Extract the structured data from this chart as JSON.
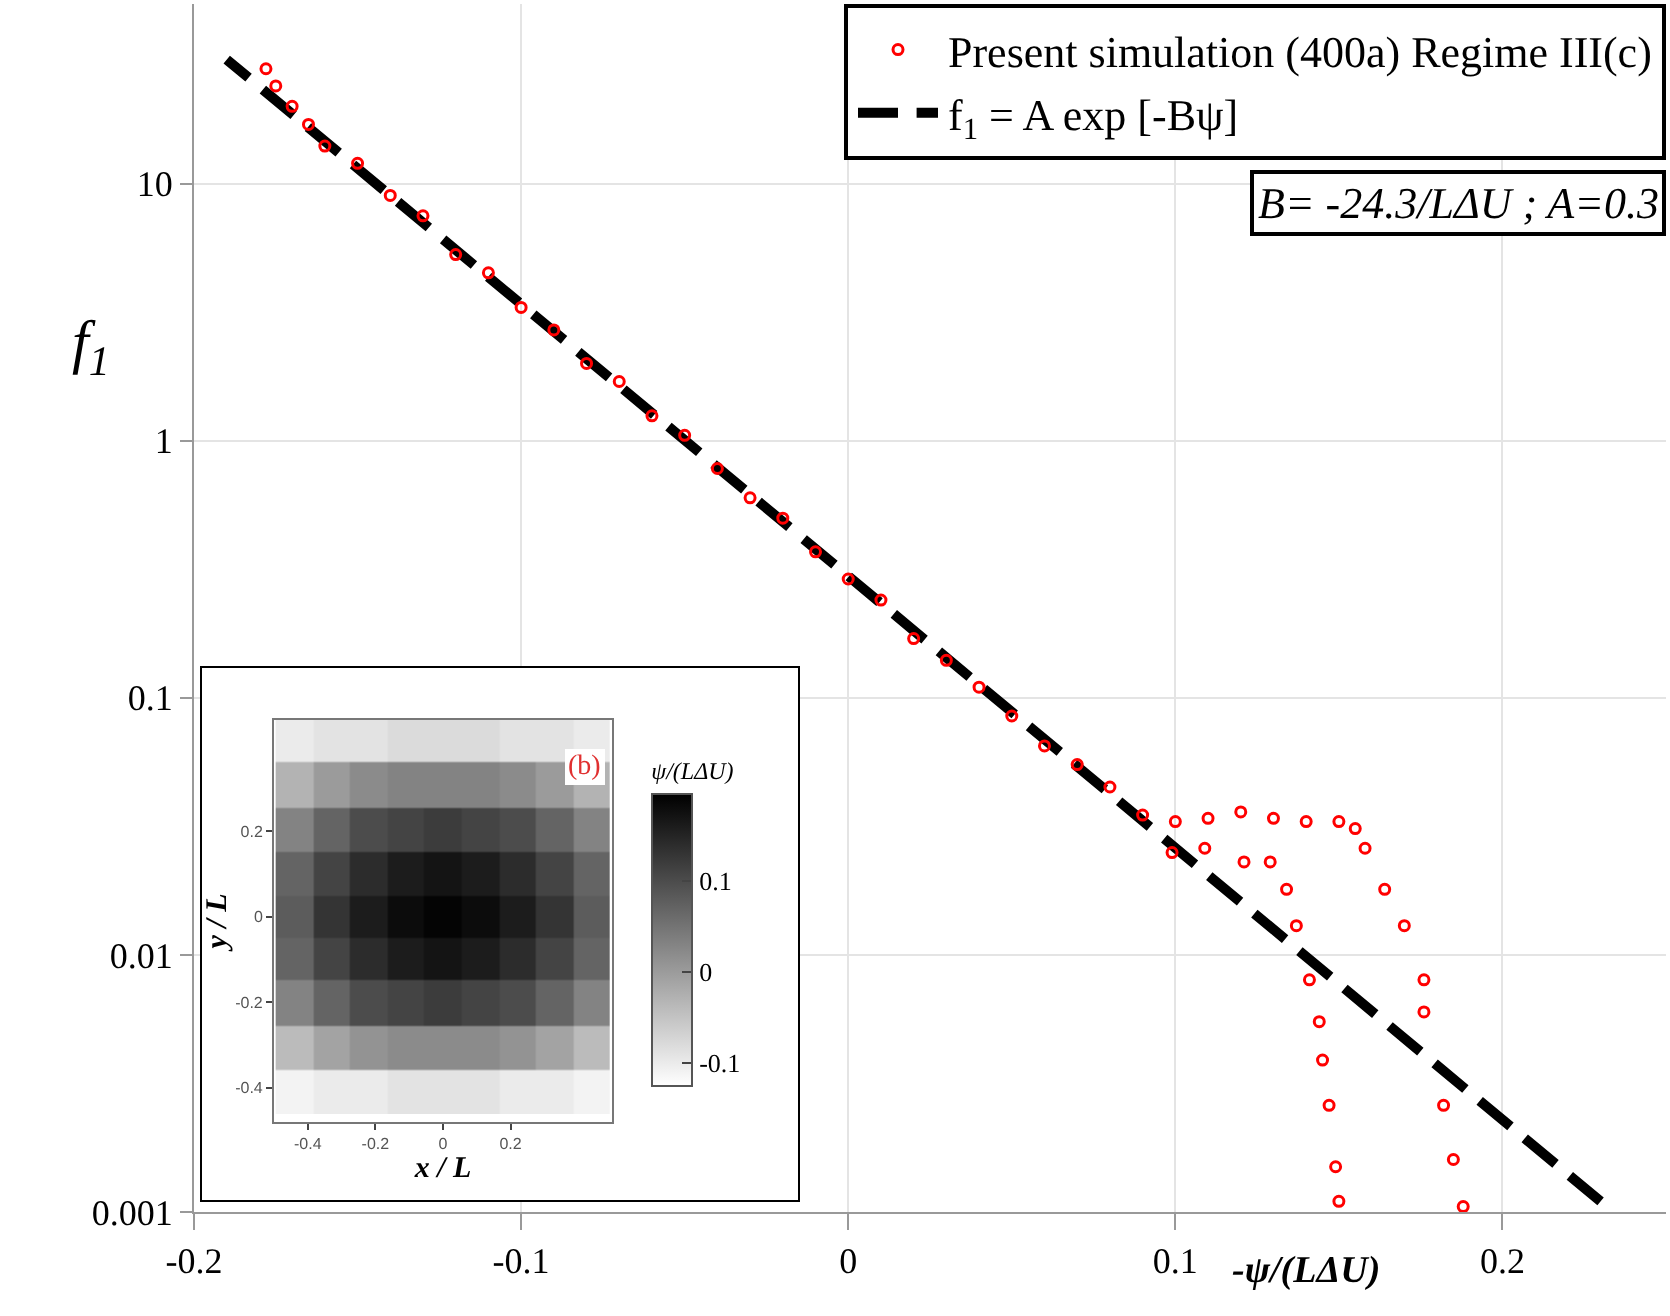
{
  "chart_data": [
    {
      "type": "scatter",
      "xlabel": "-ψ/(LΔU)",
      "ylabel": "f$_{1}$",
      "log": "y",
      "grid": true,
      "legend": "top right",
      "marker": "circle",
      "xlim": [
        -0.2,
        0.25
      ],
      "xticks": [
        -0.2,
        -0.1,
        0,
        0.1,
        0.2
      ],
      "ylim": [
        0.001,
        50
      ],
      "yticks": [
        0.001,
        0.01,
        0.1,
        1,
        10
      ],
      "annotations": [
        "B= -24.3/LΔU ; A=0.3"
      ],
      "series": [
        {
          "name": "Present simulation (400a) Regime III(c)",
          "type": "scatter",
          "color": "#ff0000",
          "x": [
            -0.178,
            -0.175,
            -0.17,
            -0.165,
            -0.16,
            -0.15,
            -0.14,
            -0.13,
            -0.12,
            -0.11,
            -0.1,
            -0.09,
            -0.08,
            -0.07,
            -0.06,
            -0.05,
            -0.04,
            -0.03,
            -0.02,
            -0.01,
            0,
            0.01,
            0.02,
            0.03,
            0.04,
            0.05,
            0.06,
            0.07,
            0.08,
            0.09,
            0.1,
            0.11,
            0.12,
            0.13,
            0.14,
            0.15,
            0.155,
            0.158,
            0.164,
            0.17,
            0.176,
            0.176,
            0.182,
            0.185,
            0.188,
            0.099,
            0.109,
            0.121,
            0.129,
            0.134,
            0.137,
            0.141,
            0.144,
            0.145,
            0.147,
            0.149,
            0.15
          ],
          "values": [
            28,
            24,
            20,
            17,
            14,
            12,
            9,
            7.5,
            5.3,
            4.5,
            3.3,
            2.7,
            2.0,
            1.7,
            1.25,
            1.05,
            0.78,
            0.6,
            0.5,
            0.37,
            0.29,
            0.24,
            0.17,
            0.14,
            0.11,
            0.085,
            0.065,
            0.055,
            0.045,
            0.035,
            0.033,
            0.034,
            0.036,
            0.034,
            0.033,
            0.033,
            0.031,
            0.026,
            0.018,
            0.013,
            0.008,
            0.006,
            0.0026,
            0.0016,
            0.00105,
            0.025,
            0.026,
            0.023,
            0.023,
            0.018,
            0.013,
            0.008,
            0.0055,
            0.0039,
            0.0026,
            0.0015,
            0.0011
          ]
        },
        {
          "name": "f$_{1}$ = A exp [-Bψ]",
          "type": "line",
          "line_style": "dashed",
          "marker": "none",
          "color": "#000000",
          "x": [
            0.23,
            -0.19
          ],
          "values": [
            0.0011,
            30.4
          ]
        }
      ]
    },
    {
      "type": "heatmap",
      "xlabel": "x / L",
      "ylabel": "y / L",
      "clabel": "ψ/(LΔU)",
      "annotations": [
        "(b)"
      ],
      "xlim": [
        -0.5,
        0.5
      ],
      "xticks": [
        -0.4,
        -0.2,
        0,
        0.2
      ],
      "ylim": [
        -0.48,
        0.46
      ],
      "yticks": [
        -0.4,
        -0.2,
        0,
        0.2
      ],
      "clim": [
        -0.125,
        0.195
      ],
      "cticks": [
        -0.1,
        0,
        0.1
      ],
      "x": [
        -0.44,
        -0.33,
        -0.22,
        -0.11,
        0,
        0.11,
        0.22,
        0.33,
        0.44
      ],
      "y": [
        0.41,
        0.31,
        0.2,
        0.1,
        0,
        -0.1,
        -0.2,
        -0.31,
        -0.41
      ],
      "cells": [
        [
          -0.1,
          -0.09,
          -0.09,
          -0.08,
          -0.08,
          -0.08,
          -0.09,
          -0.09,
          -0.1
        ],
        [
          -0.03,
          0.0,
          0.02,
          0.03,
          0.03,
          0.03,
          0.02,
          0.0,
          -0.03
        ],
        [
          0.03,
          0.07,
          0.1,
          0.11,
          0.12,
          0.11,
          0.1,
          0.07,
          0.03
        ],
        [
          0.07,
          0.11,
          0.14,
          0.16,
          0.17,
          0.16,
          0.14,
          0.11,
          0.07
        ],
        [
          0.08,
          0.13,
          0.16,
          0.18,
          0.19,
          0.18,
          0.16,
          0.13,
          0.08
        ],
        [
          0.07,
          0.11,
          0.14,
          0.16,
          0.17,
          0.16,
          0.14,
          0.11,
          0.07
        ],
        [
          0.03,
          0.07,
          0.1,
          0.11,
          0.12,
          0.11,
          0.1,
          0.07,
          0.03
        ],
        [
          -0.04,
          -0.01,
          0.01,
          0.02,
          0.02,
          0.02,
          0.01,
          -0.01,
          -0.04
        ],
        [
          -0.11,
          -0.1,
          -0.1,
          -0.09,
          -0.09,
          -0.09,
          -0.1,
          -0.1,
          -0.11
        ]
      ]
    }
  ]
}
